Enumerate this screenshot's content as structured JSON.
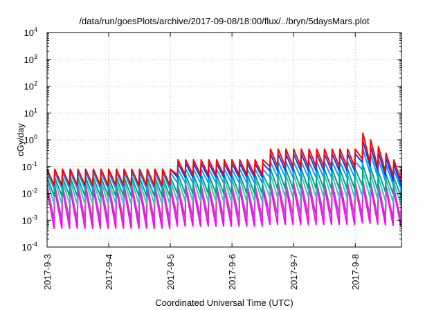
{
  "chart_data": {
    "type": "line",
    "title": "/data/run/goesPlots/archive/2017-09-08/18:00/flux/../bryn/5daysMars.plot",
    "xlabel": "Coordinated Universal Time (UTC)",
    "ylabel": "cGy/day",
    "yscale": "log",
    "ylim": [
      0.0001,
      10000
    ],
    "y_ticks": [
      {
        "base": "10",
        "exp": "-4",
        "value": 0.0001
      },
      {
        "base": "10",
        "exp": "-3",
        "value": 0.001
      },
      {
        "base": "10",
        "exp": "-2",
        "value": 0.01
      },
      {
        "base": "10",
        "exp": "-1",
        "value": 0.1
      },
      {
        "base": "10",
        "exp": "0",
        "value": 1
      },
      {
        "base": "10",
        "exp": "1",
        "value": 10
      },
      {
        "base": "10",
        "exp": "2",
        "value": 100
      },
      {
        "base": "10",
        "exp": "3",
        "value": 1000
      },
      {
        "base": "10",
        "exp": "4",
        "value": 10000
      }
    ],
    "x_ticks": [
      "2017-9-3",
      "2017-9-4",
      "2017-9-5",
      "2017-9-6",
      "2017-9-7",
      "2017-9-8"
    ],
    "x_range_days": [
      0,
      5.75
    ],
    "grid": true,
    "series_colors": [
      "#ff0000",
      "#0040ff",
      "#00a0ff",
      "#00a080",
      "#40c0c0",
      "#c040c0",
      "#ff00ff"
    ],
    "series": [
      {
        "color": "#ff0000",
        "x_days": [
          0,
          2,
          2.0,
          3.6,
          3.6,
          5.05,
          5.1,
          5.75
        ],
        "peak": [
          0.08,
          0.08,
          0.18,
          0.18,
          0.45,
          0.45,
          2.0,
          0.1
        ],
        "trough": [
          0.02,
          0.02,
          0.05,
          0.05,
          0.1,
          0.1,
          0.2,
          0.03
        ]
      },
      {
        "color": "#0040ff",
        "x_days": [
          0,
          2,
          2.0,
          3.6,
          3.6,
          5.05,
          5.1,
          5.75
        ],
        "peak": [
          0.08,
          0.08,
          0.13,
          0.13,
          0.3,
          0.3,
          1.0,
          0.08
        ],
        "trough": [
          0.02,
          0.02,
          0.04,
          0.04,
          0.07,
          0.07,
          0.15,
          0.02
        ]
      },
      {
        "color": "#00a0ff",
        "x_days": [
          0,
          2,
          2.0,
          3.6,
          3.6,
          5.05,
          5.1,
          5.75
        ],
        "peak": [
          0.06,
          0.06,
          0.08,
          0.08,
          0.15,
          0.15,
          0.5,
          0.05
        ],
        "trough": [
          0.015,
          0.015,
          0.025,
          0.025,
          0.04,
          0.04,
          0.08,
          0.015
        ]
      },
      {
        "color": "#00a080",
        "x_days": [
          0,
          2,
          2.0,
          3.6,
          3.6,
          5.05,
          5.1,
          5.75
        ],
        "peak": [
          0.04,
          0.04,
          0.05,
          0.05,
          0.08,
          0.08,
          0.12,
          0.03
        ],
        "trough": [
          0.008,
          0.008,
          0.01,
          0.01,
          0.015,
          0.015,
          0.02,
          0.008
        ]
      },
      {
        "color": "#40c0c0",
        "x_days": [
          0,
          2,
          2.0,
          3.6,
          3.6,
          5.05,
          5.1,
          5.75
        ],
        "peak": [
          0.03,
          0.03,
          0.035,
          0.035,
          0.05,
          0.05,
          0.07,
          0.02
        ],
        "trough": [
          0.004,
          0.004,
          0.005,
          0.005,
          0.007,
          0.007,
          0.008,
          0.004
        ]
      },
      {
        "color": "#c040c0",
        "x_days": [
          0,
          2,
          2.0,
          3.6,
          3.6,
          5.05,
          5.1,
          5.75
        ],
        "peak": [
          0.02,
          0.02,
          0.02,
          0.02,
          0.025,
          0.025,
          0.03,
          0.015
        ],
        "trough": [
          0.001,
          0.001,
          0.0012,
          0.0012,
          0.0015,
          0.0015,
          0.0015,
          0.001
        ]
      },
      {
        "color": "#ff00ff",
        "x_days": [
          0,
          2,
          2.0,
          3.6,
          3.6,
          5.05,
          5.1,
          5.75
        ],
        "peak": [
          0.015,
          0.015,
          0.015,
          0.015,
          0.018,
          0.018,
          0.02,
          0.012
        ],
        "trough": [
          0.0005,
          0.0005,
          0.0006,
          0.0006,
          0.0007,
          0.0007,
          0.0008,
          0.0006
        ]
      }
    ]
  }
}
